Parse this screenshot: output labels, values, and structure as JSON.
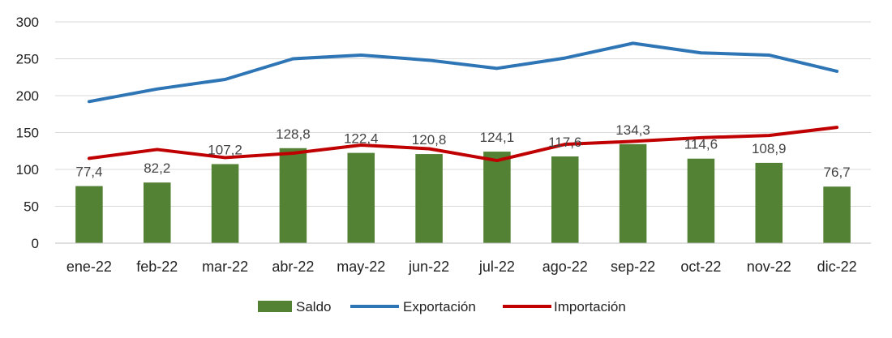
{
  "chart_data": {
    "type": "bar",
    "categories": [
      "ene-22",
      "feb-22",
      "mar-22",
      "abr-22",
      "may-22",
      "jun-22",
      "jul-22",
      "ago-22",
      "sep-22",
      "oct-22",
      "nov-22",
      "dic-22"
    ],
    "series": [
      {
        "name": "Saldo",
        "type": "bar",
        "color": "#548235",
        "values": [
          77.4,
          82.2,
          107.2,
          128.8,
          122.4,
          120.8,
          124.1,
          117.6,
          134.3,
          114.6,
          108.9,
          76.7
        ],
        "labels": [
          "77,4",
          "82,2",
          "107,2",
          "128,8",
          "122,4",
          "120,8",
          "124,1",
          "117,6",
          "134,3",
          "114,6",
          "108,9",
          "76,7"
        ]
      },
      {
        "name": "Exportación",
        "type": "line",
        "color": "#2E75B6",
        "values": [
          192,
          209,
          222,
          250,
          255,
          248,
          237,
          251,
          271,
          258,
          255,
          233
        ]
      },
      {
        "name": "Importación",
        "type": "line",
        "color": "#C00000",
        "values": [
          115,
          127,
          116,
          122,
          133,
          128,
          112,
          134,
          138,
          143,
          146,
          157
        ]
      }
    ],
    "yticks": [
      "0",
      "50",
      "100",
      "150",
      "200",
      "250",
      "300"
    ],
    "ylim": [
      0,
      300
    ],
    "grid": true,
    "legend": "bottom"
  }
}
